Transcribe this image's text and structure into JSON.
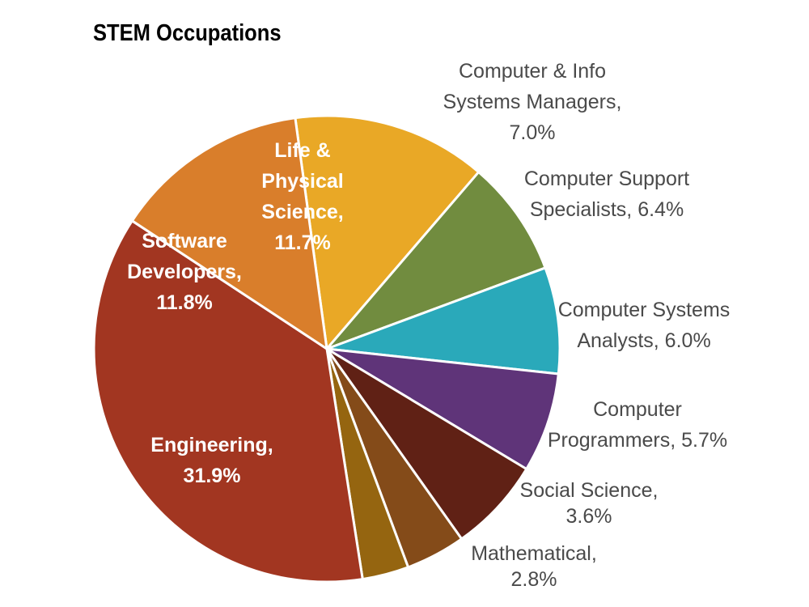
{
  "chart_data": {
    "type": "pie",
    "title": "STEM Occupations",
    "slices": [
      {
        "label": "Life & Physical Science, 11.7%",
        "value": 11.7,
        "color": "#E9A826",
        "label_lines": [
          "Life &",
          "Physical",
          "Science,",
          "11.7%"
        ],
        "label_style": "inside"
      },
      {
        "label": "Computer & Info Systems Managers, 7.0%",
        "value": 7.0,
        "color": "#718C3F",
        "label_lines": [
          "Computer & Info",
          "Systems Managers,",
          "7.0%"
        ],
        "label_style": "outside"
      },
      {
        "label": "Computer Support Specialists, 6.4%",
        "value": 6.4,
        "color": "#2AA9BA",
        "label_lines": [
          "Computer Support",
          "Specialists, 6.4%"
        ],
        "label_style": "outside"
      },
      {
        "label": "Computer Systems Analysts, 6.0%",
        "value": 6.0,
        "color": "#5F3479",
        "label_lines": [
          "Computer Systems",
          "Analysts, 6.0%"
        ],
        "label_style": "outside"
      },
      {
        "label": "Computer Programmers, 5.7%",
        "value": 5.7,
        "color": "#602115",
        "label_lines": [
          "Computer",
          "Programmers, 5.7%"
        ],
        "label_style": "outside"
      },
      {
        "label": "Social Science, 3.6%",
        "value": 3.6,
        "color": "#844B19",
        "label_lines": [
          "Social Science,",
          "3.6%"
        ],
        "label_style": "outside"
      },
      {
        "label": "Mathematical, 2.8%",
        "value": 2.8,
        "color": "#956510",
        "label_lines": [
          "Mathematical,",
          "2.8%"
        ],
        "label_style": "outside"
      },
      {
        "label": "Engineering, 31.9%",
        "value": 31.9,
        "color": "#A23621",
        "label_lines": [
          "Engineering,",
          "31.9%"
        ],
        "label_style": "inside"
      },
      {
        "label": "Software Developers, 11.8%",
        "value": 11.8,
        "color": "#D97E2B",
        "label_lines": [
          "Software",
          "Developers,",
          "11.8%"
        ],
        "label_style": "inside"
      }
    ]
  }
}
